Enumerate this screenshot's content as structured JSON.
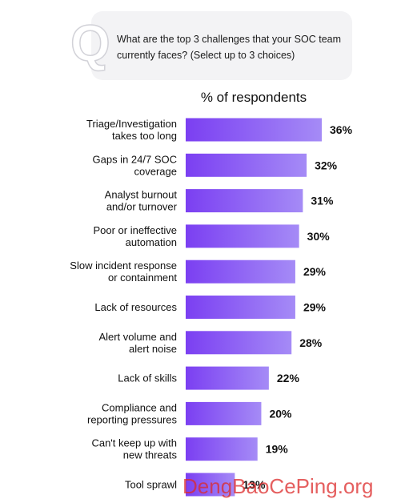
{
  "question": {
    "letter": "Q",
    "text": "What are the top 3 challenges that your SOC team currently faces? (Select up to 3 choices)"
  },
  "chart_data": {
    "type": "bar",
    "orientation": "horizontal",
    "title": "% of respondents",
    "categories": [
      "Triage/Investigation takes too long",
      "Gaps in 24/7 SOC coverage",
      "Analyst burnout and/or turnover",
      "Poor or ineffective automation",
      "Slow incident response or containment",
      "Lack of resources",
      "Alert volume and alert noise",
      "Lack of skills",
      "Compliance and reporting pressures",
      "Can't keep up with new threats",
      "Tool sprawl"
    ],
    "label_lines": [
      [
        "Triage/Investigation",
        "takes too long"
      ],
      [
        "Gaps in 24/7 SOC",
        "coverage"
      ],
      [
        "Analyst burnout",
        "and/or turnover"
      ],
      [
        "Poor or ineffective",
        "automation"
      ],
      [
        "Slow incident response",
        "or containment"
      ],
      [
        "Lack of resources"
      ],
      [
        "Alert volume and",
        "alert noise"
      ],
      [
        "Lack of skills"
      ],
      [
        "Compliance and",
        "reporting pressures"
      ],
      [
        "Can't keep up with",
        "new threats"
      ],
      [
        "Tool sprawl"
      ]
    ],
    "values": [
      36,
      32,
      31,
      30,
      29,
      29,
      28,
      22,
      20,
      19,
      13
    ],
    "value_labels": [
      "36%",
      "32%",
      "31%",
      "30%",
      "29%",
      "29%",
      "28%",
      "22%",
      "20%",
      "19%",
      "13%"
    ],
    "bar_color_start": "#7b3ff2",
    "bar_color_end": "#a58bf6",
    "grid": false,
    "legend": "none"
  },
  "watermark": "DengBaoCePing.org"
}
